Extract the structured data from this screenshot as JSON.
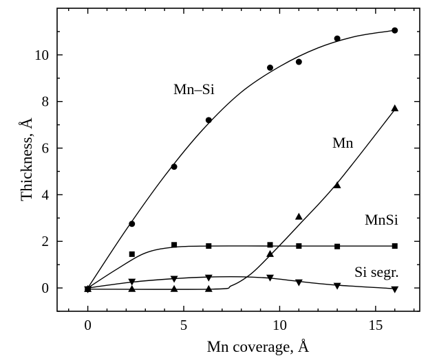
{
  "chart_data": {
    "type": "line",
    "xlabel": "Mn coverage, Å",
    "ylabel": "Thickness, Å",
    "xlim": [
      -1.6,
      17.3
    ],
    "ylim": [
      -1.0,
      12.0
    ],
    "xticks": [
      0,
      5,
      10,
      15
    ],
    "yticks": [
      0,
      2,
      4,
      6,
      8,
      10
    ],
    "grid": false,
    "series": [
      {
        "name": "Mn–Si",
        "marker": "circle",
        "x": [
          0,
          2.3,
          4.5,
          6.3,
          9.5,
          11,
          13,
          16
        ],
        "y": [
          -0.05,
          2.75,
          5.2,
          7.2,
          9.45,
          9.7,
          10.7,
          11.05
        ],
        "curve_x": [
          0,
          2,
          4,
          6,
          8,
          10,
          12,
          14,
          16
        ],
        "curve_y": [
          0,
          2.5,
          4.8,
          6.8,
          8.4,
          9.5,
          10.3,
          10.8,
          11.05
        ]
      },
      {
        "name": "Mn",
        "marker": "triangle-up",
        "x": [
          0,
          2.3,
          4.5,
          6.3,
          9.5,
          11,
          13,
          16
        ],
        "y": [
          -0.05,
          -0.05,
          -0.05,
          -0.05,
          1.45,
          3.05,
          4.4,
          7.7
        ],
        "curve_x": [
          0,
          6.5,
          7.5,
          8.5,
          9.5,
          11,
          13,
          16
        ],
        "curve_y": [
          -0.05,
          -0.05,
          0.1,
          0.6,
          1.4,
          2.7,
          4.5,
          7.65
        ]
      },
      {
        "name": "MnSi",
        "marker": "square",
        "x": [
          0,
          2.3,
          4.5,
          6.3,
          9.5,
          11,
          13,
          16
        ],
        "y": [
          -0.05,
          1.45,
          1.85,
          1.8,
          1.85,
          1.8,
          1.78,
          1.8
        ],
        "curve_x": [
          0,
          1.5,
          3,
          4.5,
          6.3,
          9.5,
          13,
          16
        ],
        "curve_y": [
          0,
          0.8,
          1.5,
          1.75,
          1.8,
          1.8,
          1.8,
          1.8
        ]
      },
      {
        "name": "Si segr.",
        "marker": "triangle-down",
        "x": [
          0,
          2.3,
          4.5,
          6.3,
          9.5,
          11,
          13,
          16
        ],
        "y": [
          -0.05,
          0.28,
          0.4,
          0.45,
          0.45,
          0.25,
          0.1,
          -0.05
        ],
        "curve_x": [
          0,
          2.3,
          4.5,
          6.3,
          8,
          9.5,
          11,
          13,
          16
        ],
        "curve_y": [
          0,
          0.25,
          0.4,
          0.47,
          0.48,
          0.42,
          0.28,
          0.12,
          -0.03
        ]
      }
    ]
  }
}
